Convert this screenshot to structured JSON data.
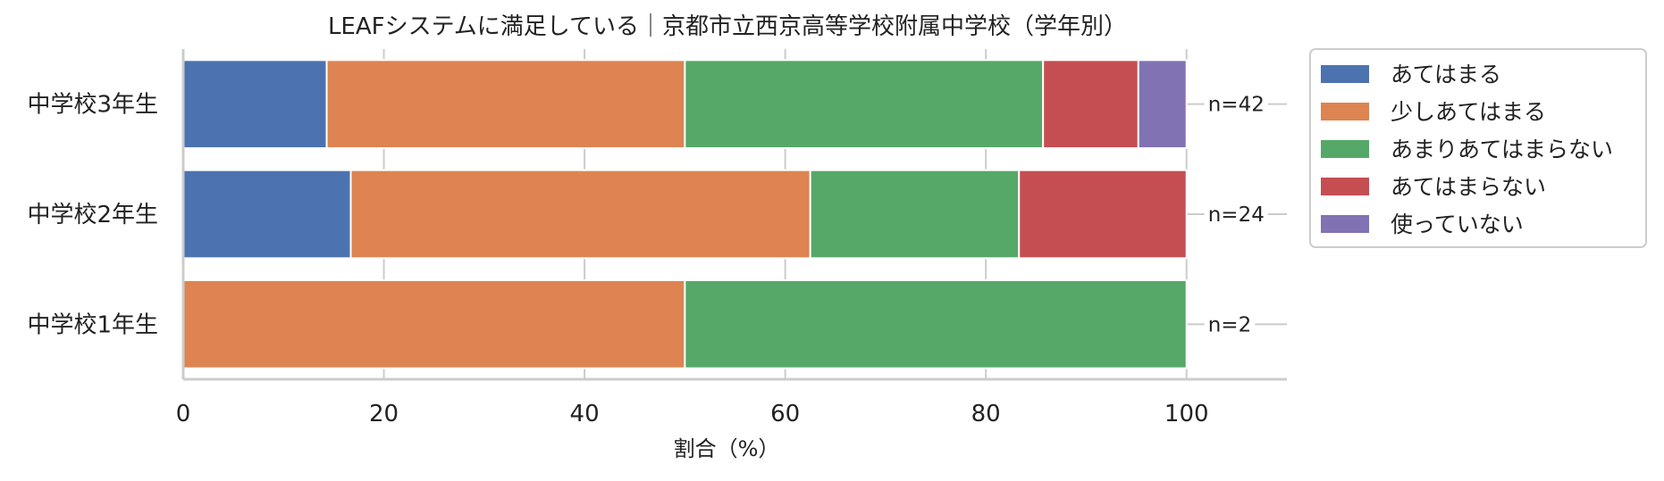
{
  "chart_data": {
    "type": "bar",
    "orientation": "horizontal",
    "stacked": true,
    "title": "LEAFシステムに満足している｜京都市立西京高等学校附属中学校（学年別）",
    "xlabel": "割合（%）",
    "ylabel": "",
    "xlim": [
      0,
      110
    ],
    "xticks": [
      0,
      20,
      40,
      60,
      80,
      100
    ],
    "grid": true,
    "legend_position": "outside-right",
    "categories": [
      "中学校3年生",
      "中学校2年生",
      "中学校1年生"
    ],
    "n_labels": [
      "n=42",
      "n=24",
      "n=2"
    ],
    "series": [
      {
        "name": "あてはまる",
        "color": "#4c72b0",
        "values": [
          14.3,
          16.7,
          0
        ]
      },
      {
        "name": "少しあてはまる",
        "color": "#dd8452",
        "values": [
          35.7,
          45.8,
          50.0
        ]
      },
      {
        "name": "あまりあてはまらない",
        "color": "#55a868",
        "values": [
          35.7,
          20.8,
          50.0
        ]
      },
      {
        "name": "あてはまらない",
        "color": "#c44e52",
        "values": [
          9.5,
          16.7,
          0
        ]
      },
      {
        "name": "使っていない",
        "color": "#8172b3",
        "values": [
          4.8,
          0,
          0
        ]
      }
    ]
  }
}
